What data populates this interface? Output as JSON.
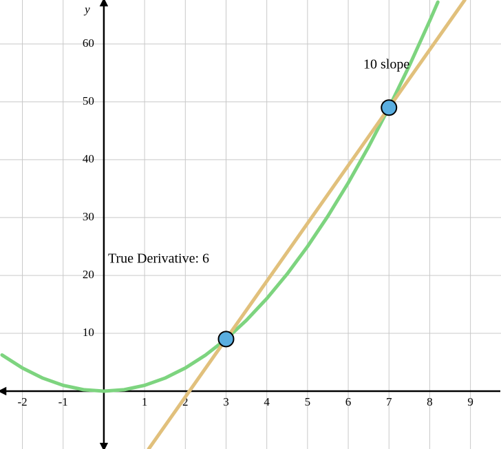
{
  "chart_data": {
    "type": "line",
    "y_label": "y",
    "xlim": [
      -2.55,
      9.75
    ],
    "ylim": [
      -10,
      67.6
    ],
    "xticks": [
      -2,
      -1,
      1,
      2,
      3,
      4,
      5,
      6,
      7,
      8,
      9
    ],
    "yticks": [
      10,
      20,
      30,
      40,
      50,
      60
    ],
    "grid": true,
    "annotations": [
      "True Derivative: 6",
      "10 slope"
    ],
    "series": [
      {
        "style": "line",
        "color": "#7dd47f",
        "x": [
          -2.5,
          -2,
          -1.5,
          -1,
          -0.5,
          0,
          0.5,
          1,
          1.5,
          2,
          2.5,
          3,
          3.5,
          4,
          4.5,
          5,
          5.5,
          6,
          6.5,
          7,
          7.5,
          8,
          8.2
        ],
        "values": [
          6.25,
          4,
          2.25,
          1,
          0.25,
          0,
          0.25,
          1,
          2.25,
          4,
          6.25,
          9,
          12.25,
          16,
          20.25,
          25,
          30.25,
          36,
          42.25,
          49,
          56.25,
          64,
          67.24
        ]
      },
      {
        "style": "line",
        "color": "#e1c07c",
        "x": [
          1.1,
          8.86
        ],
        "values": [
          -10,
          67.6
        ]
      },
      {
        "style": "points",
        "color": "#5aaee0",
        "x": [
          3,
          7
        ],
        "values": [
          9,
          49
        ]
      }
    ]
  }
}
